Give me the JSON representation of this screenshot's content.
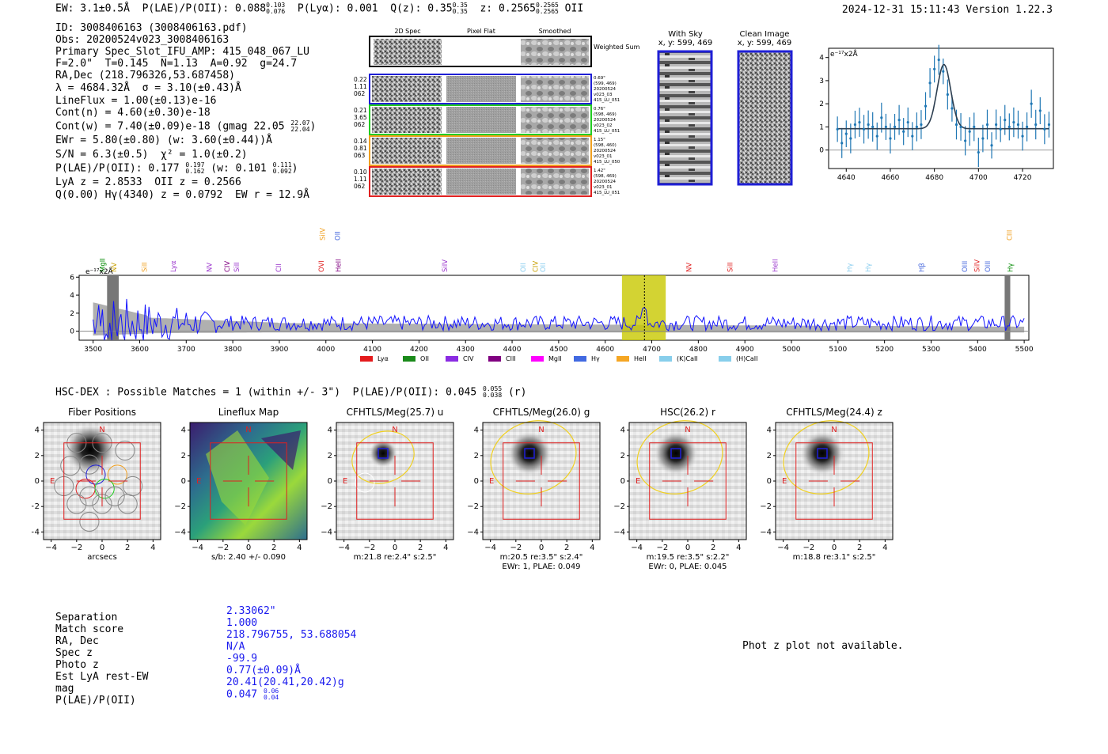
{
  "header": {
    "ew": "EW: 3.1±0.5Å",
    "plae_label": "P(LAE)/P(OII): 0.088",
    "plae_hi": "0.103",
    "plae_lo": "0.076",
    "plya": "P(Lyα): 0.001",
    "qz_label": "Q(z): 0.35",
    "qz_hi": "0.35",
    "qz_lo": "0.35",
    "z_label": "z: 0.2565",
    "z_hi": "0.2565",
    "z_lo": "0.2565",
    "z_line": "OII",
    "timestamp": "2024-12-31 15:11:43",
    "version": "Version 1.22.3"
  },
  "info": {
    "id": "ID: 3008406163 (3008406163.pdf)",
    "obs": "Obs: 20200524v023_3008406163",
    "primary": "Primary Spec_Slot_IFU_AMP: 415_048_067_LU",
    "fparams": "F=2.0\"  T=0.145  N=1.13  A=0.92  g=24.7",
    "radec": "RA,Dec (218.796326,53.687458)",
    "lambda": "λ = 4684.32Å  σ = 3.10(±0.43)Å",
    "lineflux": "LineFlux = 1.00(±0.13)e-16",
    "contn": "Cont(n) = 4.60(±0.30)e-18",
    "contw": "Cont(w) = 7.40(±0.09)e-18 (gmag 22.05",
    "contw_hi": "22.07",
    "contw_lo": "22.04",
    "contw_close": ")",
    "ewr": "EWr = 5.80(±0.80) (w: 3.60(±0.44))Å",
    "sn": "S/N = 6.3(±0.5)  χ² = 1.0(±0.2)",
    "plae": "P(LAE)/P(OII): 0.177",
    "plae_hi": "0.197",
    "plae_lo": "0.162",
    "plae_w": "(w: 0.101",
    "plae_w_hi": "0.111",
    "plae_w_lo": "0.092",
    "plae_w_close": ")",
    "lya": "LyA z = 2.8533  OII z = 0.2566",
    "q": "Q(0.00) Hγ(4340) z = 0.0792  EW r = 12.9Å"
  },
  "cutouts": {
    "headers": [
      "2D Spec",
      "Pixel Flat",
      "Smoothed"
    ],
    "weighted_label": "Weighted Sum",
    "rows": [
      {
        "left": [
          "0.22",
          "1.11",
          "062"
        ],
        "right": [
          "0.69\"",
          "(599, 469)",
          "20200524",
          "v023_03",
          "415_LU_051"
        ],
        "color": "#1f1fd6"
      },
      {
        "left": [
          "0.21",
          "3.65",
          "062"
        ],
        "right": [
          "0.76\"",
          "(598, 469)",
          "20200524",
          "v023_02",
          "415_LU_051"
        ],
        "color": "#22cc22"
      },
      {
        "left": [
          "0.14",
          "0.81",
          "063"
        ],
        "right": [
          "1.15\"",
          "(598, 460)",
          "20200524",
          "v023_01",
          "415_LU_050"
        ],
        "color": "#f0a020"
      },
      {
        "left": [
          "0.10",
          "1.11",
          "062"
        ],
        "right": [
          "1.42\"",
          "(598, 469)",
          "20200524",
          "v023_01",
          "415_LU_051"
        ],
        "color": "#e02020"
      }
    ],
    "sky_title": "With Sky",
    "sky_sub": "x, y: 599, 469",
    "clean_title": "Clean Image",
    "clean_sub": "x, y: 599, 469"
  },
  "line_fit": {
    "ylabel": "e⁻¹⁷x2Å",
    "xticks": [
      "4640",
      "4660",
      "4680",
      "4700",
      "4720"
    ],
    "yticks": [
      "0",
      "1",
      "2",
      "3",
      "4"
    ]
  },
  "spectrum": {
    "ylabel": "e⁻¹⁷x2Å",
    "xticks": [
      "3500",
      "3600",
      "3700",
      "3800",
      "3900",
      "4000",
      "4100",
      "4200",
      "4300",
      "4400",
      "4500",
      "4600",
      "4700",
      "4800",
      "4900",
      "5000",
      "5100",
      "5200",
      "5300",
      "5400",
      "5500"
    ],
    "yticks": [
      "0",
      "2",
      "4",
      "6"
    ],
    "line_labels": [
      {
        "text": "MgII",
        "w": 3520,
        "c": "#008800",
        "row": 1
      },
      {
        "text": "NV",
        "w": 3545,
        "c": "#c8a000",
        "row": 1
      },
      {
        "text": "SiII",
        "w": 3610,
        "c": "#f0a020",
        "row": 1
      },
      {
        "text": "Lyα",
        "w": 3672,
        "c": "#9933cc",
        "row": 1
      },
      {
        "text": "NV",
        "w": 3750,
        "c": "#9933cc",
        "row": 1
      },
      {
        "text": "CIV",
        "w": 3788,
        "c": "#800080",
        "row": 1
      },
      {
        "text": "SiII",
        "w": 3808,
        "c": "#9933cc",
        "row": 1
      },
      {
        "text": "CII",
        "w": 3898,
        "c": "#9933cc",
        "row": 1
      },
      {
        "text": "SiIV",
        "w": 3993,
        "c": "#f0a020",
        "row": 0
      },
      {
        "text": "OVI",
        "w": 3990,
        "c": "#e02020",
        "row": 1
      },
      {
        "text": "OII",
        "w": 4025,
        "c": "#4466dd",
        "row": 0
      },
      {
        "text": "HeII",
        "w": 4027,
        "c": "#800080",
        "row": 1
      },
      {
        "text": "SiIV",
        "w": 4255,
        "c": "#9933cc",
        "row": 1
      },
      {
        "text": "OII",
        "w": 4424,
        "c": "#88ccee",
        "row": 1
      },
      {
        "text": "CIV",
        "w": 4450,
        "c": "#c8a000",
        "row": 1
      },
      {
        "text": "OII",
        "w": 4466,
        "c": "#88ccee",
        "row": 1
      },
      {
        "text": "NV",
        "w": 4780,
        "c": "#e02020",
        "row": 1
      },
      {
        "text": "SiII",
        "w": 4868,
        "c": "#e02020",
        "row": 1
      },
      {
        "text": "HeII",
        "w": 4965,
        "c": "#9933cc",
        "row": 1
      },
      {
        "text": "Hγ",
        "w": 5125,
        "c": "#88ccee",
        "row": 1
      },
      {
        "text": "Hγ",
        "w": 5165,
        "c": "#88ccee",
        "row": 1
      },
      {
        "text": "Hβ",
        "w": 5280,
        "c": "#4466dd",
        "row": 1
      },
      {
        "text": "OIII",
        "w": 5372,
        "c": "#4466dd",
        "row": 1
      },
      {
        "text": "SiIV",
        "w": 5399,
        "c": "#e02020",
        "row": 1
      },
      {
        "text": "OIII",
        "w": 5422,
        "c": "#4466dd",
        "row": 1
      },
      {
        "text": "CIII",
        "w": 5468,
        "c": "#f0a020",
        "row": 0
      },
      {
        "text": "Hγ",
        "w": 5470,
        "c": "#008800",
        "row": 1
      }
    ],
    "legend": [
      {
        "label": "Lyα",
        "color": "#e41a1c"
      },
      {
        "label": "OII",
        "color": "#1a8a1a"
      },
      {
        "label": "CIV",
        "color": "#8a2be2"
      },
      {
        "label": "CIII",
        "color": "#800080"
      },
      {
        "label": "MgII",
        "color": "#ff00ff"
      },
      {
        "label": "Hγ",
        "color": "#4169e1"
      },
      {
        "label": "HeII",
        "color": "#f5a623"
      },
      {
        "label": "(K)CaII",
        "color": "#87ceeb"
      },
      {
        "label": "(H)CaII",
        "color": "#87ceeb"
      }
    ]
  },
  "hsc_line": {
    "text": "HSC-DEX : Possible Matches = 1 (within +/- 3\")  P(LAE)/P(OII): 0.045",
    "hi": "0.055",
    "lo": "0.038",
    "suffix": "(r)"
  },
  "panels": [
    {
      "title": "Fiber Positions",
      "xlabel": "arcsecs",
      "extra": ""
    },
    {
      "title": "Lineflux Map",
      "xlabel": "s/b: 2.40 +/- 0.090",
      "extra": ""
    },
    {
      "title": "CFHTLS/Meg(25.7) u",
      "xlabel": "m:21.8  re:2.4\"  s:2.5\"",
      "extra": ""
    },
    {
      "title": "CFHTLS/Meg(26.0) g",
      "xlabel": "m:20.5  re:3.5\"  s:2.4\"",
      "extra": "EWr: 1, PLAE: 0.049"
    },
    {
      "title": "HSC(26.2) r",
      "xlabel": "m:19.5  re:3.5\"  s:2.2\"",
      "extra": "EWr: 0, PLAE: 0.045"
    },
    {
      "title": "CFHTLS/Meg(24.4) z",
      "xlabel": "m:18.8  re:3.1\"  s:2.5\"",
      "extra": ""
    }
  ],
  "panel_ticks": [
    "−4",
    "−2",
    "0",
    "2",
    "4"
  ],
  "compass": {
    "n": "N",
    "e": "E"
  },
  "match": {
    "rows": [
      {
        "k": "Separation",
        "v": "2.33062\""
      },
      {
        "k": "Match score",
        "v": "1.000"
      },
      {
        "k": "RA, Dec",
        "v": "218.796755, 53.688054"
      },
      {
        "k": "Spec z",
        "v": "N/A"
      },
      {
        "k": "Photo z",
        "v": "-99.9"
      },
      {
        "k": "Est LyA rest-EW",
        "v": "0.77(±0.09)Å"
      },
      {
        "k": "mag",
        "v": "20.41(20.41,20.42)g"
      },
      {
        "k": "P(LAE)/P(OII)",
        "v": "0.047"
      }
    ],
    "plae_hi": "0.06",
    "plae_lo": "0.04"
  },
  "photz_note": "Phot z plot not available.",
  "chart_data": [
    {
      "type": "line",
      "title": "",
      "xlabel": "",
      "ylabel": "e⁻¹⁷x2Å",
      "xlim": [
        4632,
        4734
      ],
      "ylim": [
        -0.8,
        4.4
      ],
      "series": [
        {
          "kind": "data_with_errors",
          "x": [
            4636,
            4638,
            4640,
            4642,
            4644,
            4646,
            4648,
            4650,
            4652,
            4654,
            4656,
            4658,
            4660,
            4662,
            4664,
            4666,
            4668,
            4670,
            4672,
            4674,
            4676,
            4678,
            4680,
            4682,
            4684,
            4686,
            4688,
            4690,
            4692,
            4694,
            4696,
            4698,
            4700,
            4702,
            4704,
            4706,
            4708,
            4710,
            4712,
            4714,
            4716,
            4718,
            4720,
            4722,
            4724,
            4726,
            4728,
            4730,
            4732
          ],
          "values": [
            0.9,
            0.3,
            0.7,
            0.5,
            1.1,
            1.2,
            0.9,
            1.1,
            1.0,
            0.6,
            1.4,
            1.0,
            0.5,
            1.0,
            1.3,
            0.8,
            1.2,
            0.6,
            1.0,
            1.1,
            1.9,
            2.9,
            3.5,
            3.9,
            3.4,
            2.4,
            1.8,
            1.1,
            1.0,
            0.4,
            0.8,
            1.0,
            -0.1,
            0.5,
            1.1,
            0.2,
            1.1,
            0.9,
            1.3,
            1.0,
            1.2,
            1.1,
            0.6,
            1.0,
            2.0,
            1.1,
            1.7,
            0.9,
            1.1
          ]
        },
        {
          "kind": "gaussian_fit",
          "center": 4684.32,
          "sigma": 3.1,
          "continuum": 0.92,
          "amplitude": 2.78
        }
      ]
    },
    {
      "type": "line",
      "title": "",
      "xlabel": "",
      "ylabel": "e⁻¹⁷x2Å",
      "xlim": [
        3470,
        5510
      ],
      "ylim": [
        -1,
        6.2
      ],
      "series": [
        {
          "name": "",
          "kind": "flux",
          "step": 4,
          "x_start": 3500,
          "x_end": 5500,
          "baseline": 0.9,
          "noise": 1.4,
          "peak_at": 4684,
          "peak": 2.5
        },
        {
          "name": "",
          "kind": "error_fill"
        }
      ],
      "highlight_region": [
        4636,
        4730
      ],
      "line_center": 4684.32
    }
  ]
}
